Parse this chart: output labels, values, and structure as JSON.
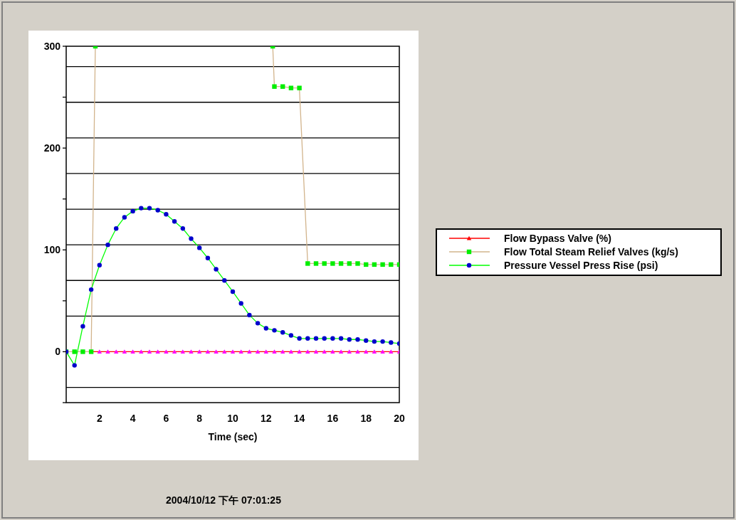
{
  "chart_data": {
    "type": "line",
    "xlabel": "Time (sec)",
    "annotations": [
      "2004/10/12 下午 07:01:25"
    ],
    "xlim": [
      0,
      20
    ],
    "xticks": [
      2,
      4,
      6,
      8,
      10,
      12,
      14,
      16,
      18,
      20
    ],
    "ylim": [
      -50,
      300
    ],
    "yticks": [
      {
        "value": -50,
        "label": null
      },
      0,
      {
        "value": 50,
        "label": null
      },
      100,
      {
        "value": 150,
        "label": null
      },
      200,
      {
        "value": 250,
        "label": null
      },
      300
    ],
    "ref_lines": [
      {
        "axis": "y",
        "value": -35,
        "color": "#000000"
      },
      {
        "axis": "y",
        "value": 35,
        "color": "#000000"
      },
      {
        "axis": "y",
        "value": 70,
        "color": "#000000"
      },
      {
        "axis": "y",
        "value": 105,
        "color": "#000000"
      },
      {
        "axis": "y",
        "value": 140,
        "color": "#000000"
      },
      {
        "axis": "y",
        "value": 175,
        "color": "#000000"
      },
      {
        "axis": "y",
        "value": 210,
        "color": "#000000"
      },
      {
        "axis": "y",
        "value": 245,
        "color": "#000000"
      },
      {
        "axis": "y",
        "value": 280,
        "color": "#000000"
      }
    ],
    "legend": "right",
    "x": [
      0,
      0.5,
      1,
      1.5,
      2,
      2.5,
      3,
      3.5,
      4,
      4.5,
      5,
      5.5,
      6,
      6.5,
      7,
      7.5,
      8,
      8.5,
      9,
      9.5,
      10,
      10.5,
      11,
      11.5,
      12,
      12.5,
      13,
      13.5,
      14,
      14.5,
      15,
      15.5,
      16,
      16.5,
      17,
      17.5,
      18,
      18.5,
      19,
      19.5,
      20
    ],
    "series": [
      {
        "name": "Flow Bypass Valve (%)",
        "color": "#ff0000",
        "marker": "triangle",
        "colors": [
          null,
          null,
          null,
          "#ff00ff",
          "#ff00ff",
          "#ff00ff",
          "#ff00ff",
          "#ff00ff",
          "#ff00ff",
          "#ff00ff",
          "#ff00ff",
          "#ff00ff",
          "#ff00ff",
          "#ff00ff",
          "#ff00ff",
          "#ff00ff",
          "#ff00ff",
          "#ff00ff",
          "#ff00ff",
          "#ff00ff",
          "#ff00ff",
          "#ff00ff",
          "#ff00ff",
          "#ff00ff",
          "#ff00ff",
          "#ff00ff",
          "#ff00ff",
          "#ff00ff",
          "#ff00ff",
          "#ff00ff",
          "#ff00ff",
          "#ff00ff",
          "#ff00ff",
          "#ff00ff",
          "#ff00ff",
          "#ff00ff",
          "#ff00ff",
          "#ff00ff",
          "#ff00ff",
          "#ff00ff",
          "#ff00ff"
        ],
        "values": [
          null,
          null,
          null,
          0,
          0,
          0,
          0,
          0,
          0,
          0,
          0,
          0,
          0,
          0,
          0,
          0,
          0,
          0,
          0,
          0,
          0,
          0,
          0,
          0,
          0,
          0,
          0,
          0,
          0,
          0,
          0,
          0,
          0,
          0,
          0,
          0,
          0,
          0,
          0,
          0,
          0
        ]
      },
      {
        "name": "Flow Total Steam Relief Valves (kg/s)",
        "color": "#d2b48c",
        "marker": "square",
        "colors": [
          "#00ee00",
          "#00ee00",
          "#00ee00",
          "#00ee00",
          "#00ee00"
        ],
        "x": [
          0,
          0.5,
          1,
          1.5,
          1.75
        ],
        "values": [
          0,
          0,
          0,
          0,
          300
        ]
      },
      {
        "color": "#d2b48c",
        "marker": "square",
        "colors": [
          "#00ee00",
          "#00ee00",
          "#00ee00",
          "#00ee00",
          "#00ee00",
          "#00ee00",
          "#00ee00",
          "#00ee00",
          "#00ee00",
          "#00ee00",
          "#00ee00",
          "#00ee00",
          "#00ee00",
          "#00ee00",
          "#00ee00",
          "#00ee00",
          "#00ee00"
        ],
        "x": [
          12.4,
          12.5,
          13,
          13.5,
          14,
          14.5,
          15,
          15.5,
          16,
          16.5,
          17,
          17.5,
          18,
          18.5,
          19,
          19.5,
          20
        ],
        "values": [
          300,
          260.4,
          260.4,
          259,
          259,
          86.6,
          86.6,
          86.6,
          86.6,
          86.6,
          86.6,
          86.6,
          85.6,
          85.6,
          85.6,
          85.6,
          85.6
        ]
      },
      {
        "name": "Pressure Vessel Press Rise (psi)",
        "color": "#00ff00",
        "marker": "circle",
        "colors": [
          "#0000cc",
          "#0000cc",
          "#0000cc",
          "#0000cc",
          "#0000cc",
          "#0000cc",
          "#0000cc",
          "#0000cc",
          "#0000cc",
          "#0000cc",
          "#0000cc",
          "#0000cc",
          "#0000cc",
          "#0000cc",
          "#0000cc",
          "#0000cc",
          "#0000cc",
          "#0000cc",
          "#0000cc",
          "#0000cc",
          "#0000cc",
          "#0000cc",
          "#0000cc",
          "#0000cc",
          "#0000cc",
          "#0000cc",
          "#0000cc",
          "#0000cc",
          "#0000cc",
          "#0000cc",
          "#0000cc",
          "#0000cc",
          "#0000cc",
          "#0000cc",
          "#0000cc",
          "#0000cc",
          "#0000cc",
          "#0000cc",
          "#0000cc",
          "#0000cc",
          "#0000cc"
        ],
        "values": [
          0,
          -13.4,
          25,
          61,
          85,
          105,
          121,
          132,
          138,
          141,
          141,
          139,
          135,
          128,
          121,
          111,
          102,
          92,
          81,
          70,
          59,
          47.5,
          36,
          28,
          23,
          21,
          19,
          16,
          13,
          13,
          13,
          13,
          13,
          13,
          12,
          12,
          11,
          10,
          10,
          9,
          8
        ]
      }
    ]
  }
}
